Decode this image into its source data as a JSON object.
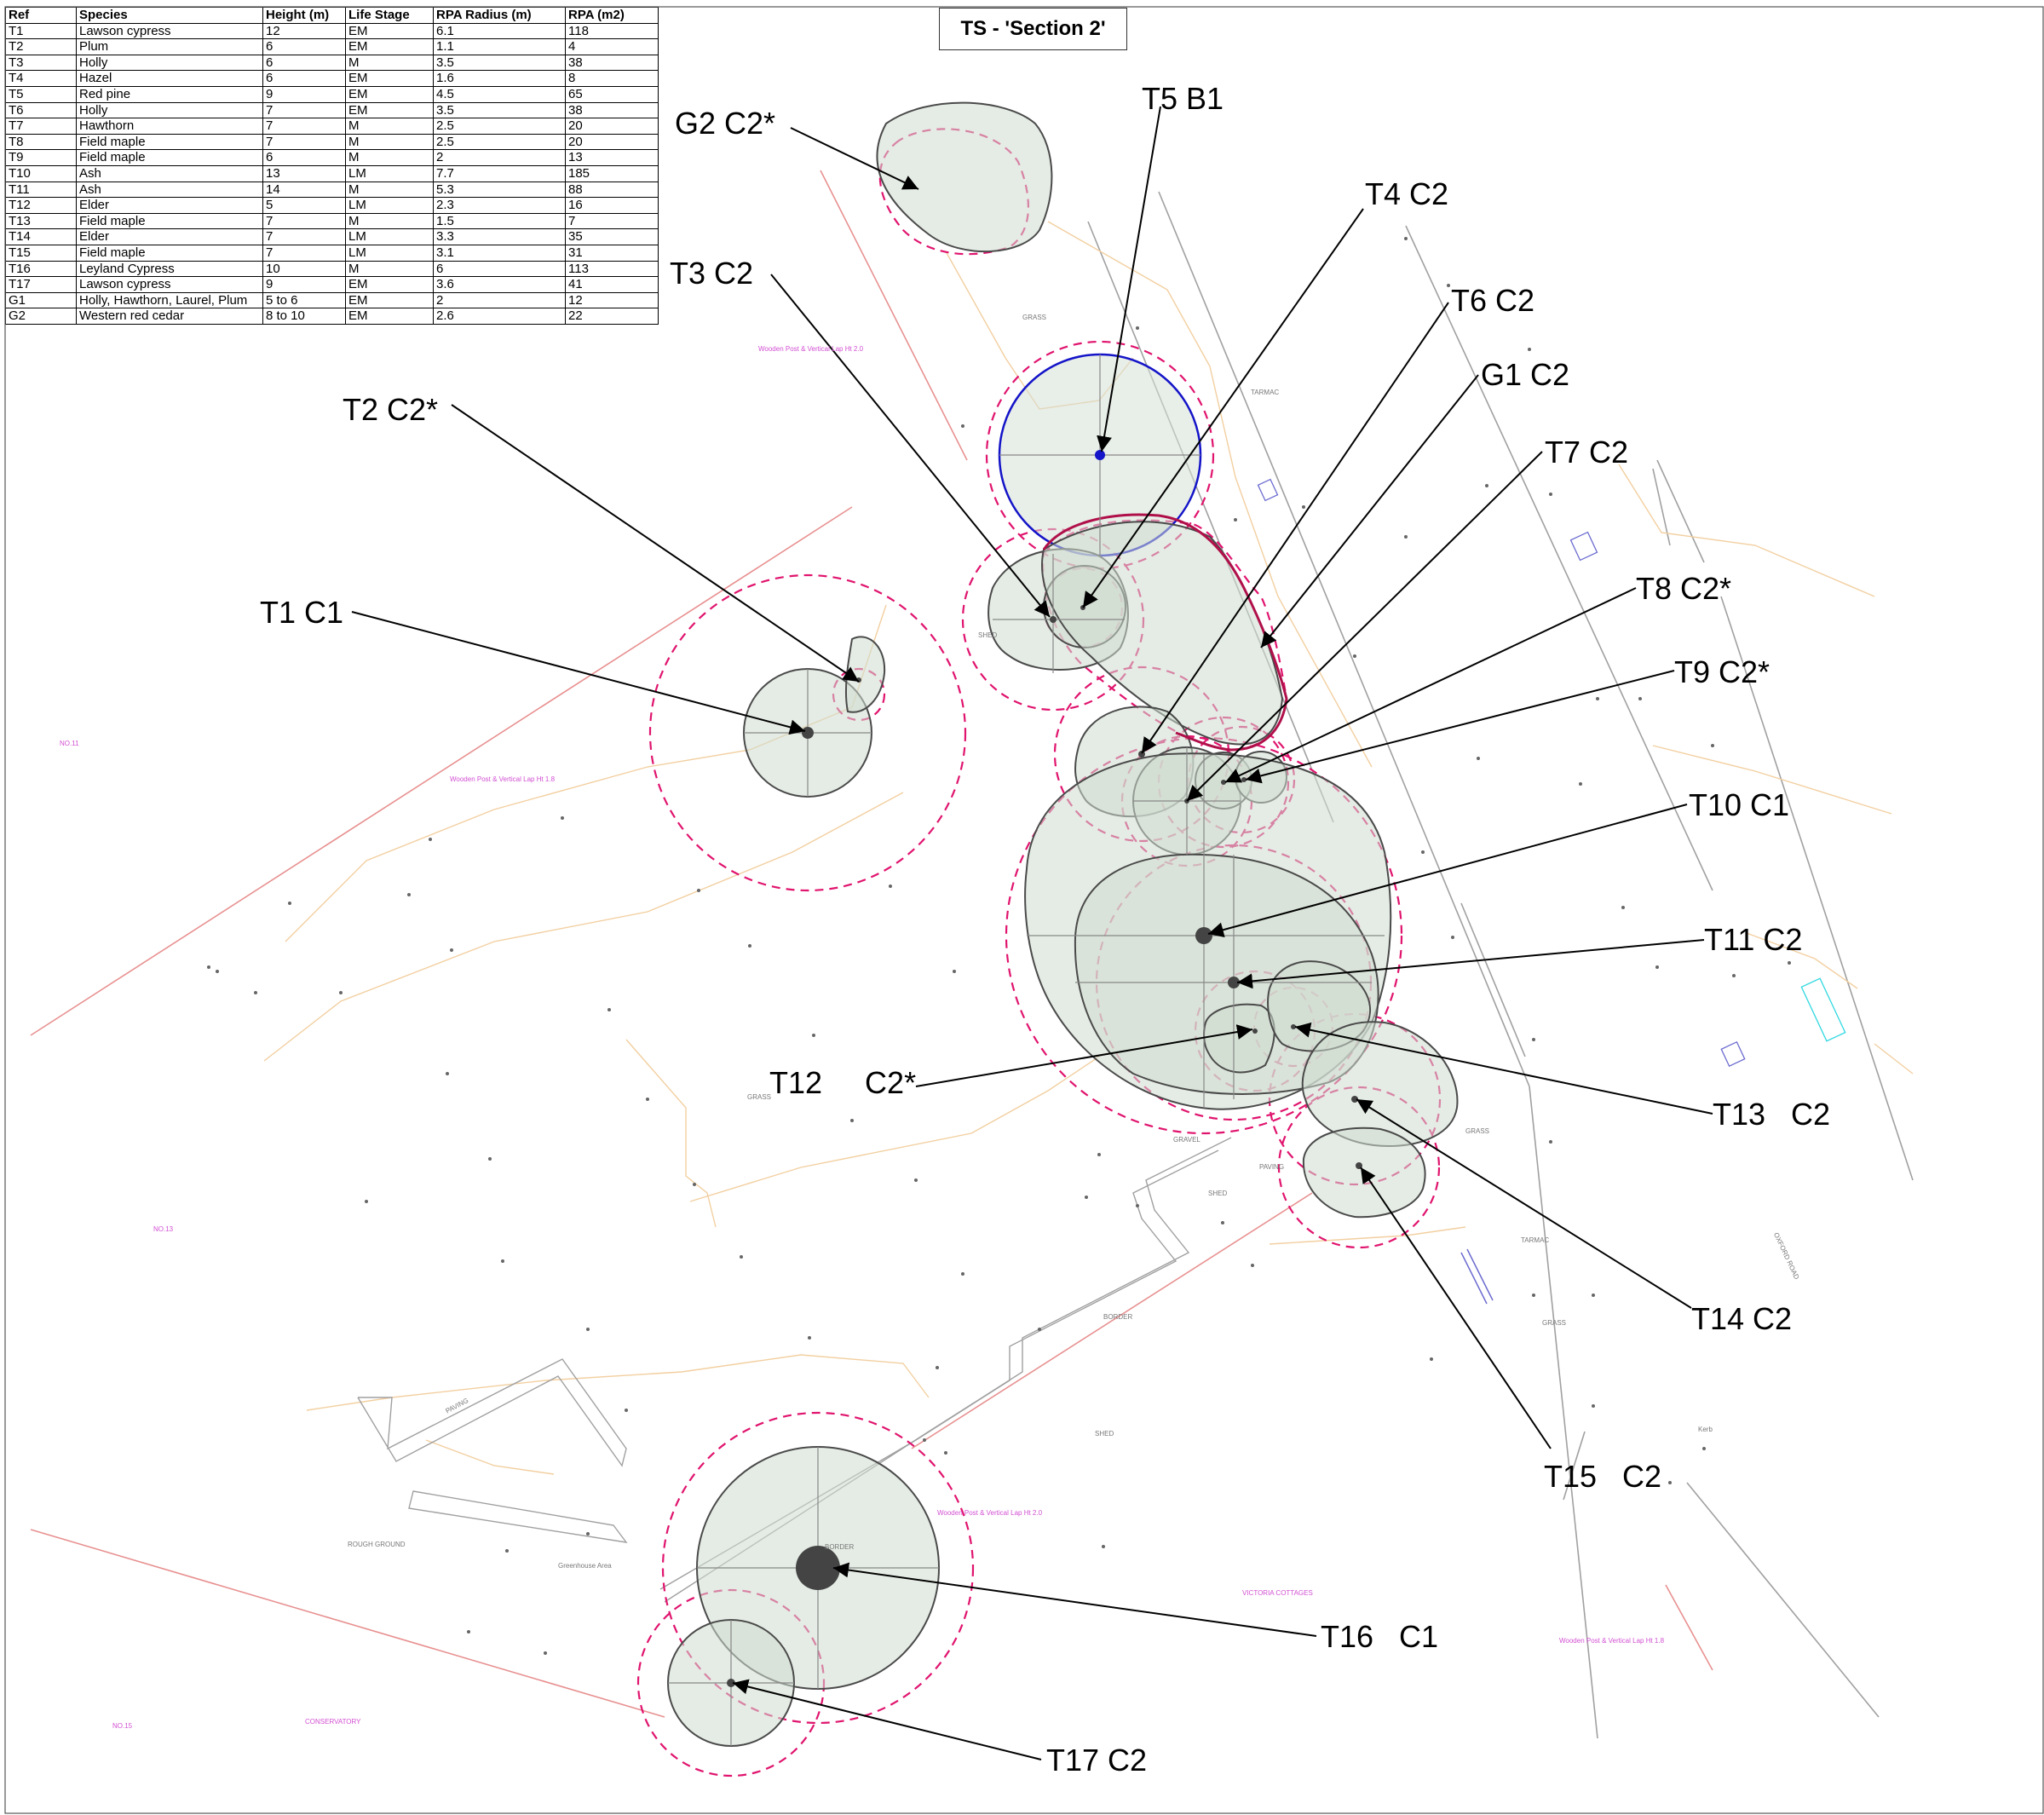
{
  "title": "TS - 'Section 2'",
  "table": {
    "headers": [
      "Ref",
      "Species",
      "Height (m)",
      "Life Stage",
      "RPA Radius (m)",
      "RPA (m2)"
    ],
    "rows": [
      [
        "T1",
        "Lawson cypress",
        "12",
        "EM",
        "6.1",
        "118"
      ],
      [
        "T2",
        "Plum",
        "6",
        "EM",
        "1.1",
        "4"
      ],
      [
        "T3",
        "Holly",
        "6",
        "M",
        "3.5",
        "38"
      ],
      [
        "T4",
        "Hazel",
        "6",
        "EM",
        "1.6",
        "8"
      ],
      [
        "T5",
        "Red pine",
        "9",
        "EM",
        "4.5",
        "65"
      ],
      [
        "T6",
        "Holly",
        "7",
        "EM",
        "3.5",
        "38"
      ],
      [
        "T7",
        "Hawthorn",
        "7",
        "M",
        "2.5",
        "20"
      ],
      [
        "T8",
        "Field maple",
        "7",
        "M",
        "2.5",
        "20"
      ],
      [
        "T9",
        "Field maple",
        "6",
        "M",
        "2",
        "13"
      ],
      [
        "T10",
        "Ash",
        "13",
        "LM",
        "7.7",
        "185"
      ],
      [
        "T11",
        "Ash",
        "14",
        "M",
        "5.3",
        "88"
      ],
      [
        "T12",
        "Elder",
        "5",
        "LM",
        "2.3",
        "16"
      ],
      [
        "T13",
        "Field maple",
        "7",
        "M",
        "1.5",
        "7"
      ],
      [
        "T14",
        "Elder",
        "7",
        "LM",
        "3.3",
        "35"
      ],
      [
        "T15",
        "Field maple",
        "7",
        "LM",
        "3.1",
        "31"
      ],
      [
        "T16",
        "Leyland Cypress",
        "10",
        "M",
        "6",
        "113"
      ],
      [
        "T17",
        "Lawson cypress",
        "9",
        "EM",
        "3.6",
        "41"
      ],
      [
        "G1",
        "Holly, Hawthorn, Laurel, Plum",
        "5 to 6",
        "EM",
        "2",
        "12"
      ],
      [
        "G2",
        "Western red cedar",
        "8 to 10",
        "EM",
        "2.6",
        "22"
      ]
    ]
  },
  "tree_labels": {
    "G2": "G2  C2*",
    "T5": "T5  B1",
    "T4": "T4  C2",
    "T3": "T3  C2",
    "T6": "T6  C2",
    "G1": "G1  C2",
    "T7": "T7    C2",
    "T2": "T2  C2*",
    "T8": "T8  C2*",
    "T1": "T1  C1",
    "T9": "T9    C2*",
    "T10": "T10  C1",
    "T11": "T11  C2",
    "T12": "T12     C2*",
    "T13": "T13   C2",
    "T14": "T14  C2",
    "T15": "T15   C2",
    "T16": "T16   C1",
    "T17": "T17  C2"
  },
  "site_labels": {
    "grass_1": "GRASS",
    "tarmac_1": "TARMAC",
    "shed_1": "SHED",
    "grass_2": "GRASS",
    "gravel": "GRAVEL",
    "paving_1": "PAVING",
    "shed_2": "SHED",
    "border_1": "BORDER",
    "grass_3": "GRASS",
    "tarmac_2": "TARMAC",
    "paving_2": "PAVING",
    "shed_3": "SHED",
    "rough_ground": "ROUGH GROUND",
    "greenhouse": "Greenhouse Area",
    "border_2": "BORDER",
    "victoria": "VICTORIA COTTAGES",
    "conservatory": "CONSERVATORY",
    "no11": "NO.11",
    "no13": "NO.13",
    "no15": "NO.15",
    "oxford_road": "OXFORD ROAD",
    "fence_1": "Wooden Post & Vertical Lap Ht 1.8",
    "fence_2": "Wooden Post & Vertical Lap Ht 2.0",
    "fence_3": "Wooden Post & Vertical Lap Ht 2.0",
    "fence_4": "Wooden Post & Vertical Lap Ht 1.8",
    "paving_3": "PAVING",
    "kerb": "Kerb"
  },
  "colors": {
    "canopy_fill": "#cfdccf",
    "canopy_stroke": "#4a4a4a",
    "rpa_stroke": "#e0146e",
    "t5_stroke": "#1414c8",
    "fence_line": "#e89090",
    "contour_line": "#f0c890",
    "road_line": "#9a9a9a"
  }
}
